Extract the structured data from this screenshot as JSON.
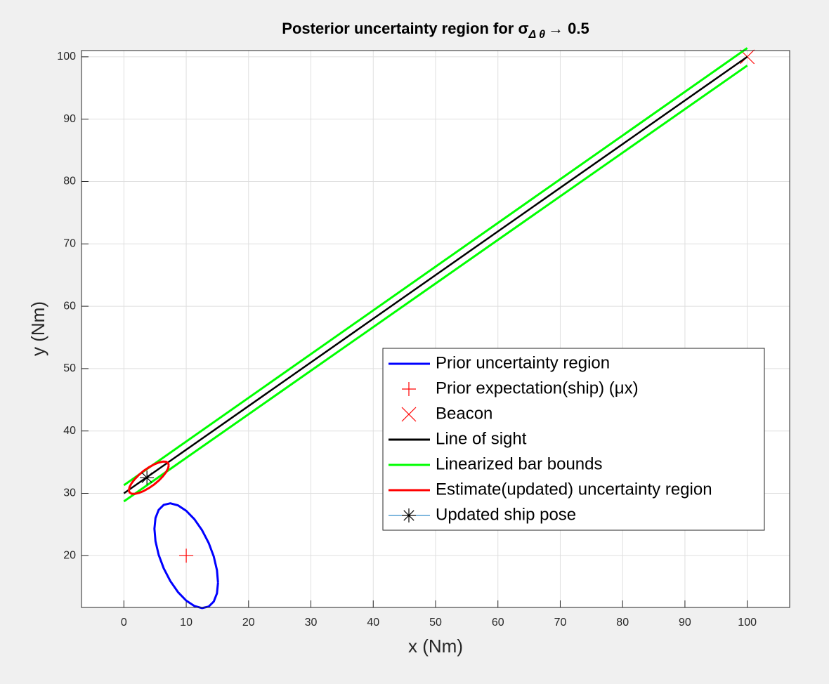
{
  "chart_data": {
    "type": "line",
    "title": {
      "text": "Posterior uncertainty region for σ",
      "subscript": "Δ θ",
      "suffix": "→ 0.5"
    },
    "x_label": "x (Nm)",
    "y_label": "y (Nm)",
    "xlim": [
      -6.8,
      106.8
    ],
    "ylim": [
      11.7,
      101
    ],
    "xticks": [
      0,
      10,
      20,
      30,
      40,
      50,
      60,
      70,
      80,
      90,
      100
    ],
    "yticks": [
      20,
      30,
      40,
      50,
      60,
      70,
      80,
      90,
      100
    ],
    "grid": true,
    "legend": "right",
    "series": [
      {
        "name": "Prior uncertainty region",
        "color": "#0000ff",
        "style": "line",
        "x": [
          15.1,
          14.93,
          14.42,
          13.61,
          12.55,
          11.32,
          10,
          8.68,
          7.45,
          6.39,
          5.58,
          5.07,
          4.9,
          5.07,
          5.58,
          6.39,
          7.45,
          8.68,
          10,
          11.32,
          12.55,
          13.61,
          14.42,
          14.93,
          15.1
        ],
        "y": [
          15.67,
          17.68,
          19.86,
          22.03,
          24.07,
          25.84,
          27.2,
          28.07,
          28.4,
          28.15,
          27.35,
          26.04,
          24.33,
          22.32,
          20.14,
          17.97,
          15.93,
          14.16,
          12.8,
          11.93,
          11.6,
          11.85,
          12.65,
          13.96,
          15.67
        ]
      },
      {
        "name": "Prior expectation(ship) (μx)",
        "color": "#ff0000",
        "style": "marker",
        "marker": "+",
        "x": [
          10
        ],
        "y": [
          20
        ]
      },
      {
        "name": "Beacon",
        "color": "#ff0000",
        "style": "marker",
        "marker": "x",
        "x": [
          100
        ],
        "y": [
          100
        ]
      },
      {
        "name": "Line of sight",
        "color": "#000000",
        "style": "line",
        "x": [
          0,
          100
        ],
        "y": [
          30,
          100
        ]
      },
      {
        "name": "Linearized bar bounds",
        "color": "#00ff00",
        "style": "line",
        "x": [
          0,
          100,
          null,
          0,
          100
        ],
        "y": [
          31.3,
          101.4,
          null,
          28.7,
          98.6
        ]
      },
      {
        "name": "Estimate(updated) uncertainty region",
        "color": "#ff0000",
        "style": "line",
        "x": [
          7.2,
          7.09,
          6.77,
          6.26,
          5.6,
          4.83,
          4,
          3.17,
          2.4,
          1.74,
          1.23,
          0.91,
          0.8,
          0.91,
          1.23,
          1.74,
          2.4,
          3.17,
          4,
          4.83,
          5.6,
          6.26,
          6.77,
          7.09,
          7.2
        ],
        "y": [
          34.49,
          34.86,
          35.06,
          35.09,
          34.94,
          34.63,
          34.17,
          33.6,
          32.95,
          32.27,
          31.61,
          31.01,
          30.51,
          30.14,
          29.94,
          29.91,
          30.06,
          30.37,
          30.83,
          31.4,
          32.05,
          32.73,
          33.39,
          33.99,
          34.49
        ]
      },
      {
        "name": "Updated ship pose",
        "color": "#000000",
        "line_color": "#0072bd",
        "style": "marker",
        "marker": "*",
        "x": [
          3.7
        ],
        "y": [
          32.5
        ]
      }
    ]
  }
}
